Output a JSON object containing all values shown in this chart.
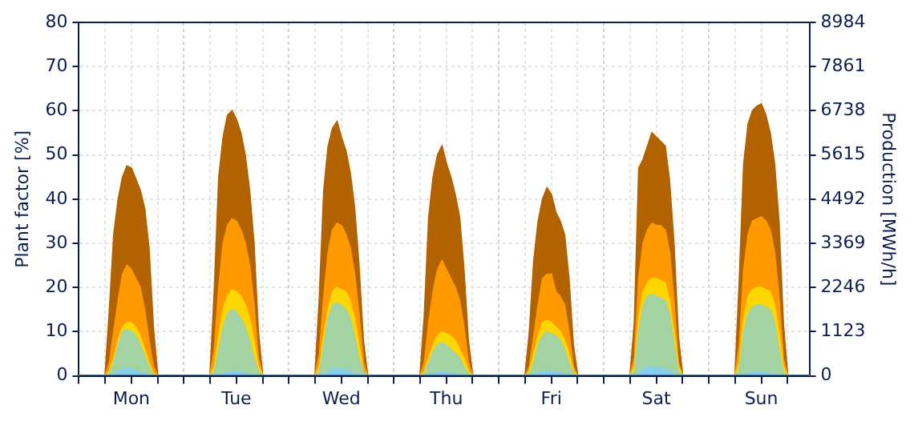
{
  "chart_data": {
    "type": "area",
    "ylabel": "Plant factor [%]",
    "y2label": "Production [MWh/h]",
    "categories": [
      null,
      null,
      null,
      null,
      null,
      null,
      null,
      null,
      null,
      null,
      null,
      null,
      "Mon",
      null,
      null,
      null,
      null,
      null,
      null,
      null,
      null,
      null,
      null,
      null,
      null,
      null,
      null,
      null,
      null,
      null,
      null,
      null,
      null,
      null,
      null,
      null,
      "Tue",
      null,
      null,
      null,
      null,
      null,
      null,
      null,
      null,
      null,
      null,
      null,
      null,
      null,
      null,
      null,
      null,
      null,
      null,
      null,
      null,
      null,
      null,
      null,
      "Wed",
      null,
      null,
      null,
      null,
      null,
      null,
      null,
      null,
      null,
      null,
      null,
      null,
      null,
      null,
      null,
      null,
      null,
      null,
      null,
      null,
      null,
      null,
      null,
      "Thu",
      null,
      null,
      null,
      null,
      null,
      null,
      null,
      null,
      null,
      null,
      null,
      null,
      null,
      null,
      null,
      null,
      null,
      null,
      null,
      null,
      null,
      null,
      null,
      "Fri",
      null,
      null,
      null,
      null,
      null,
      null,
      null,
      null,
      null,
      null,
      null,
      null,
      null,
      null,
      null,
      null,
      null,
      null,
      null,
      null,
      null,
      null,
      null,
      "Sat",
      null,
      null,
      null,
      null,
      null,
      null,
      null,
      null,
      null,
      null,
      null,
      null,
      null,
      null,
      null,
      null,
      null,
      null,
      null,
      null,
      null,
      null,
      null,
      "Sun",
      null,
      null,
      null,
      null,
      null,
      null,
      null,
      null,
      null,
      null,
      null
    ],
    "series": [
      {
        "color": "#b36200",
        "values": [
          0,
          0,
          0,
          0,
          0,
          0,
          0,
          15,
          32,
          40,
          45,
          47.5,
          47,
          44.5,
          42,
          38,
          29,
          11,
          0,
          0,
          0,
          0,
          0,
          0,
          0,
          0,
          0,
          0,
          0,
          0,
          0,
          20,
          45,
          54,
          59,
          60,
          58,
          55,
          50,
          42,
          30,
          10,
          0,
          0,
          0,
          0,
          0,
          0,
          0,
          0,
          0,
          0,
          0,
          0,
          0,
          18,
          42,
          52,
          56,
          57.5,
          54,
          51,
          46,
          38,
          25,
          8,
          0,
          0,
          0,
          0,
          0,
          0,
          0,
          0,
          0,
          0,
          0,
          0,
          0,
          14,
          36,
          45,
          50,
          52,
          48,
          45,
          41,
          36,
          24,
          8,
          0,
          0,
          0,
          0,
          0,
          0,
          0,
          0,
          0,
          0,
          0,
          0,
          0,
          10,
          26,
          35,
          40,
          42.5,
          41,
          37,
          35,
          32,
          22,
          7,
          0,
          0,
          0,
          0,
          0,
          0,
          0,
          0,
          0,
          0,
          0,
          0,
          0,
          12,
          47,
          49,
          52,
          55,
          54,
          53,
          52,
          44,
          30,
          9,
          0,
          0,
          0,
          0,
          0,
          0,
          0,
          0,
          0,
          0,
          0,
          0,
          0,
          22,
          48,
          57,
          60,
          61,
          61.5,
          59,
          55,
          48,
          35,
          12,
          0,
          0,
          0,
          0,
          0,
          0
        ]
      },
      {
        "color": "#ff9900",
        "values": [
          0,
          0,
          0,
          0,
          0,
          0,
          0,
          3,
          10,
          17,
          23,
          25,
          24,
          22,
          20,
          15,
          8,
          2,
          0,
          0,
          0,
          0,
          0,
          0,
          0,
          0,
          0,
          0,
          0,
          0,
          0,
          6,
          20,
          30,
          34,
          35.5,
          35,
          33,
          30,
          25,
          16,
          4,
          0,
          0,
          0,
          0,
          0,
          0,
          0,
          0,
          0,
          0,
          0,
          0,
          0,
          5,
          18,
          28,
          33,
          34.5,
          34,
          32,
          29,
          23,
          14,
          3,
          0,
          0,
          0,
          0,
          0,
          0,
          0,
          0,
          0,
          0,
          0,
          0,
          0,
          3,
          12,
          19,
          24,
          26,
          24,
          22,
          20,
          17,
          11,
          3,
          0,
          0,
          0,
          0,
          0,
          0,
          0,
          0,
          0,
          0,
          0,
          0,
          0,
          2,
          9,
          16,
          22,
          23,
          23,
          19,
          18,
          16,
          10,
          2,
          0,
          0,
          0,
          0,
          0,
          0,
          0,
          0,
          0,
          0,
          0,
          0,
          0,
          4,
          22,
          30,
          33,
          34.5,
          34,
          34,
          33,
          28,
          17,
          3,
          0,
          0,
          0,
          0,
          0,
          0,
          0,
          0,
          0,
          0,
          0,
          0,
          0,
          7,
          24,
          32,
          35,
          35.5,
          36,
          35,
          33,
          28,
          18,
          4,
          0,
          0,
          0,
          0,
          0,
          0
        ]
      },
      {
        "color": "#ffd700",
        "values": [
          0,
          0,
          0,
          0,
          0,
          0,
          0,
          1,
          4,
          8,
          11,
          12,
          12,
          11,
          9,
          6,
          3,
          0.5,
          0,
          0,
          0,
          0,
          0,
          0,
          0,
          0,
          0,
          0,
          0,
          0,
          0,
          2,
          9,
          15,
          18,
          19.5,
          19,
          18,
          16,
          13,
          8,
          2,
          0,
          0,
          0,
          0,
          0,
          0,
          0,
          0,
          0,
          0,
          0,
          0,
          0,
          2,
          9,
          15,
          19,
          20,
          19.5,
          19,
          17,
          13,
          7,
          1,
          0,
          0,
          0,
          0,
          0,
          0,
          0,
          0,
          0,
          0,
          0,
          0,
          0,
          1,
          4,
          7,
          9,
          10,
          9.5,
          9,
          8,
          6,
          4,
          1,
          0,
          0,
          0,
          0,
          0,
          0,
          0,
          0,
          0,
          0,
          0,
          0,
          0,
          1,
          5,
          9,
          12,
          12.5,
          12,
          11,
          10,
          8,
          5,
          1,
          0,
          0,
          0,
          0,
          0,
          0,
          0,
          0,
          0,
          0,
          0,
          0,
          0,
          2,
          13,
          19,
          21,
          22,
          22,
          21.5,
          21,
          17,
          10,
          2,
          0,
          0,
          0,
          0,
          0,
          0,
          0,
          0,
          0,
          0,
          0,
          0,
          0,
          3,
          13,
          18,
          19.5,
          20,
          20,
          19.5,
          19,
          16,
          10,
          2,
          0,
          0,
          0,
          0,
          0,
          0
        ]
      },
      {
        "color": "#a3d3a3",
        "values": [
          0,
          0,
          0,
          0,
          0,
          0,
          0,
          0.5,
          3,
          7,
          10,
          10.5,
          10,
          9,
          7,
          4.5,
          2,
          0,
          0,
          0,
          0,
          0,
          0,
          0,
          0,
          0,
          0,
          0,
          0,
          0,
          0,
          1,
          6,
          11,
          14,
          15,
          14.5,
          13,
          11,
          8,
          4,
          1,
          0,
          0,
          0,
          0,
          0,
          0,
          0,
          0,
          0,
          0,
          0,
          0,
          0,
          1,
          7,
          13,
          16,
          16.5,
          16,
          15,
          13,
          9,
          4,
          1,
          0,
          0,
          0,
          0,
          0,
          0,
          0,
          0,
          0,
          0,
          0,
          0,
          0,
          0.5,
          3,
          5.5,
          7,
          7.5,
          7,
          6,
          5,
          4,
          2,
          0.5,
          0,
          0,
          0,
          0,
          0,
          0,
          0,
          0,
          0,
          0,
          0,
          0,
          0,
          0.5,
          3,
          7,
          9,
          10,
          9.5,
          9,
          8,
          6,
          3,
          0.5,
          0,
          0,
          0,
          0,
          0,
          0,
          0,
          0,
          0,
          0,
          0,
          0,
          0,
          1,
          10,
          16,
          18,
          18.5,
          18,
          17.5,
          17,
          14,
          7,
          1,
          0,
          0,
          0,
          0,
          0,
          0,
          0,
          0,
          0,
          0,
          0,
          0,
          0,
          1.5,
          10,
          14,
          15.5,
          16,
          16,
          15.5,
          15,
          12,
          6,
          1,
          0,
          0,
          0,
          0,
          0,
          0
        ]
      },
      {
        "color": "#87ceeb",
        "values": [
          0,
          0,
          0,
          0,
          0,
          0,
          0,
          0,
          0.3,
          1,
          1.5,
          1.5,
          1.5,
          1,
          0.8,
          0.5,
          0,
          0,
          0,
          0,
          0,
          0,
          0,
          0,
          0,
          0,
          0,
          0,
          0,
          0,
          0,
          0,
          0.2,
          0.5,
          0.8,
          1,
          1,
          0.8,
          0.5,
          0.3,
          0,
          0,
          0,
          0,
          0,
          0,
          0,
          0,
          0,
          0,
          0,
          0,
          0,
          0,
          0,
          0,
          0.3,
          1,
          1.5,
          1.5,
          1.5,
          1.3,
          1,
          0.5,
          0.2,
          0,
          0,
          0,
          0,
          0,
          0,
          0,
          0,
          0,
          0,
          0,
          0,
          0,
          0,
          0,
          0.2,
          0.5,
          0.8,
          0.8,
          0.8,
          0.6,
          0.5,
          0.3,
          0,
          0,
          0,
          0,
          0,
          0,
          0,
          0,
          0,
          0,
          0,
          0,
          0,
          0,
          0,
          0,
          0.2,
          0.6,
          1,
          1,
          1,
          0.8,
          0.6,
          0.4,
          0,
          0,
          0,
          0,
          0,
          0,
          0,
          0,
          0,
          0,
          0,
          0,
          0,
          0,
          0,
          0,
          0.5,
          1.5,
          2,
          2,
          2,
          1.8,
          1.5,
          1,
          0.3,
          0,
          0,
          0,
          0,
          0,
          0,
          0,
          0,
          0,
          0,
          0,
          0,
          0,
          0,
          0,
          0.2,
          0.5,
          0.8,
          0.8,
          0.8,
          0.6,
          0.5,
          0.3,
          0,
          0,
          0,
          0,
          0,
          0,
          0,
          0
        ]
      }
    ],
    "ylim": [
      0,
      80
    ],
    "yticks": [
      0,
      10,
      20,
      30,
      40,
      50,
      60,
      70,
      80
    ],
    "y2lim": [
      0,
      8984
    ],
    "y2ticks": [
      0,
      1123,
      2246,
      3369,
      4492,
      5615,
      6738,
      7861,
      8984
    ],
    "grid": true,
    "legend": false
  }
}
